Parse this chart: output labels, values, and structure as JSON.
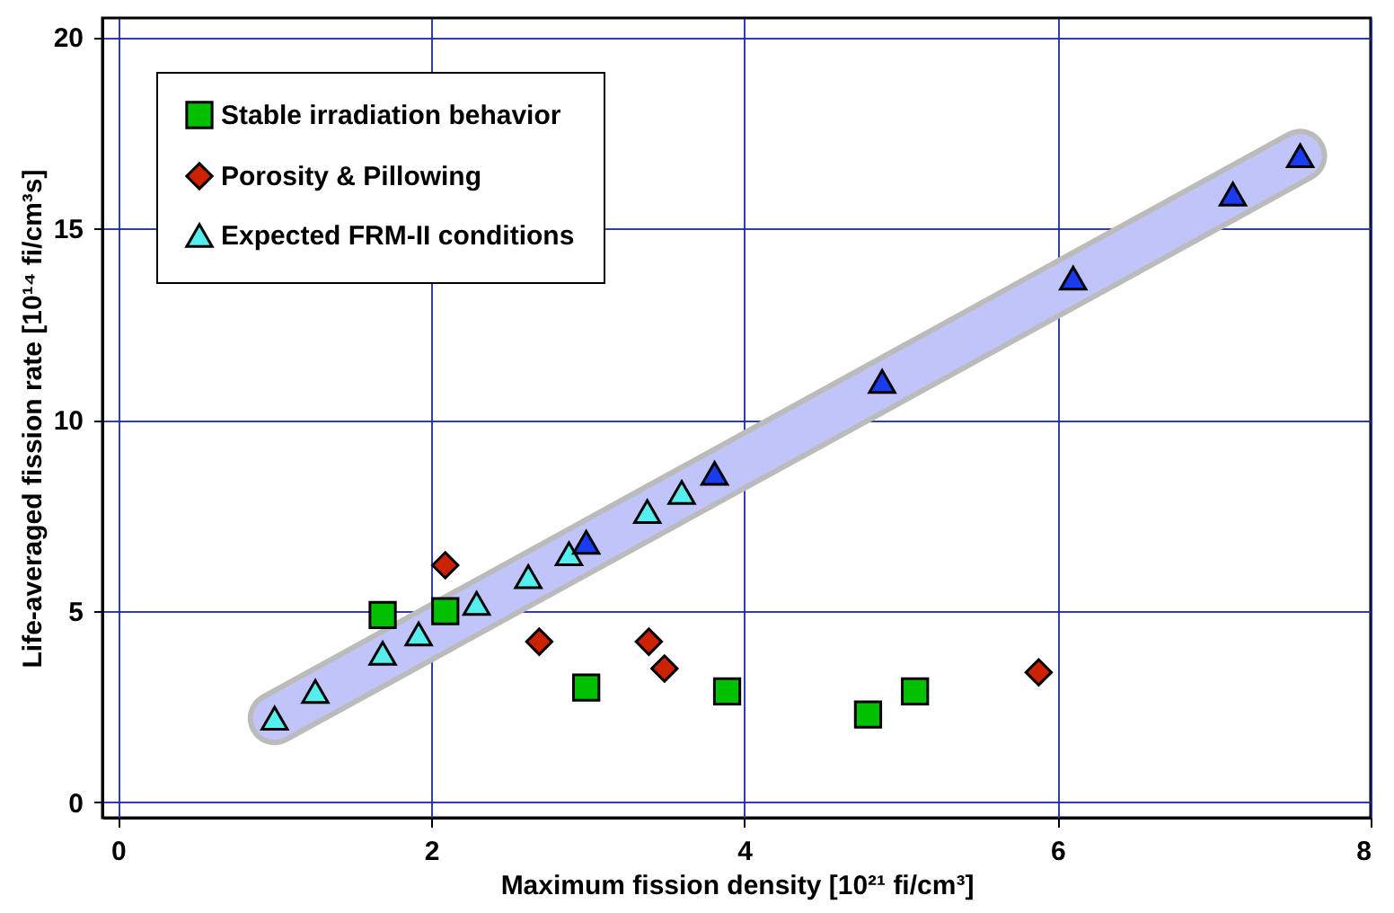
{
  "chart_data": {
    "type": "scatter",
    "xlabel": "Maximum fission density [10²¹ fi/cm³]",
    "ylabel": "Life-averaged fission rate [10¹⁴ fi/cm³s]",
    "xlim": [
      -0.1,
      8
    ],
    "ylim": [
      -0.4,
      20.5
    ],
    "xticks": [
      0,
      2,
      4,
      6,
      8
    ],
    "yticks": [
      0,
      5,
      10,
      15,
      20
    ],
    "grid": true,
    "legend": "top left",
    "series": [
      {
        "type": "line",
        "color": "#c0c4f8",
        "x": [
          1.0,
          7.55
        ],
        "values": [
          2.2,
          16.9
        ]
      },
      {
        "name": "Stable irradiation behavior",
        "color": "#00c000",
        "marker": "square",
        "x": [
          1.69,
          2.09,
          2.99,
          3.89,
          4.79,
          5.09
        ],
        "values": [
          4.9,
          5.0,
          3.0,
          2.9,
          2.3,
          2.9
        ]
      },
      {
        "name": "Porosity & Pillowing",
        "color": "#cc2200",
        "marker": "diamond",
        "x": [
          2.09,
          2.69,
          3.39,
          3.49,
          5.88
        ],
        "values": [
          6.2,
          4.2,
          4.2,
          3.5,
          3.4
        ]
      },
      {
        "name": "Expected FRM-II conditions",
        "color": "#55eeee",
        "marker": "triangle",
        "x": [
          1.0,
          1.26,
          1.69,
          1.92,
          2.29,
          2.62,
          2.88,
          2.99,
          3.38,
          3.6,
          3.81,
          4.88,
          6.1,
          7.12,
          7.55
        ],
        "values": [
          2.2,
          2.9,
          3.9,
          4.4,
          5.2,
          5.9,
          6.5,
          6.8,
          7.6,
          8.1,
          8.6,
          11.0,
          13.7,
          15.9,
          16.9
        ],
        "colors": [
          "#55eeee",
          "#55eeee",
          "#55eeee",
          "#55eeee",
          "#55eeee",
          "#55eeee",
          "#55eeee",
          "#1a3cf0",
          "#55eeee",
          "#55eeee",
          "#1a3cf0",
          "#1a3cf0",
          "#1a3cf0",
          "#1a3cf0",
          "#1a3cf0"
        ]
      }
    ]
  }
}
